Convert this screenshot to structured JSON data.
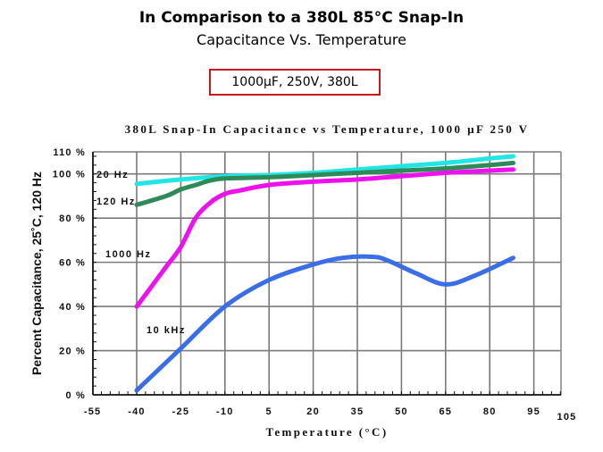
{
  "header": {
    "title": "In Comparison to a 380L 85°C Snap-In",
    "subtitle": "Capacitance Vs. Temperature",
    "spec_box": "1000µF, 250V, 380L",
    "spec_box_border_color": "#c8191c"
  },
  "chart_data": {
    "type": "line",
    "title": "380L Snap-In Capacitance vs Temperature, 1000 µF 250 V",
    "xlabel": "Temperature (°C)",
    "ylabel": "Percent Capacitance, 25˚C, 120 Hz",
    "xlim": [
      -55,
      105
    ],
    "ylim": [
      0,
      110
    ],
    "grid": true,
    "x_ticks": [
      -55,
      -40,
      -25,
      -10,
      5,
      20,
      35,
      50,
      65,
      80,
      95,
      105
    ],
    "x_tick_labels": [
      "-55",
      "-40",
      "-25",
      "-10",
      "5",
      "20",
      "35",
      "50",
      "65",
      "80",
      "95",
      "105"
    ],
    "y_ticks": [
      0,
      20,
      40,
      60,
      80,
      100,
      110
    ],
    "y_tick_labels": [
      "0 %",
      "20 %",
      "40 %",
      "60 %",
      "80 %",
      "100 %",
      "110 %"
    ],
    "series": [
      {
        "name": "20 Hz",
        "color": "#22e6e6",
        "x": [
          -40,
          -25,
          -10,
          5,
          20,
          35,
          50,
          65,
          80,
          88
        ],
        "values": [
          95.5,
          97.5,
          99,
          99.5,
          100.5,
          102,
          103.5,
          105,
          107,
          108
        ]
      },
      {
        "name": "120 Hz",
        "color": "#2e8b57",
        "x": [
          -40,
          -30,
          -25,
          -20,
          -15,
          -10,
          5,
          20,
          35,
          50,
          65,
          80,
          88
        ],
        "values": [
          86,
          90,
          93,
          95,
          97,
          98,
          98.5,
          99.5,
          100.5,
          101.5,
          102.5,
          104,
          105
        ]
      },
      {
        "name": "1000 Hz",
        "color": "#ee10ee",
        "x": [
          -40,
          -35,
          -30,
          -25,
          -20,
          -15,
          -10,
          -5,
          5,
          20,
          35,
          50,
          65,
          80,
          88
        ],
        "values": [
          40,
          49,
          58,
          67,
          80,
          87,
          91,
          92.5,
          95,
          96.5,
          97.5,
          99,
          100.5,
          101.5,
          102
        ]
      },
      {
        "name": "10 kHz",
        "color": "#3a6ee8",
        "x": [
          -40,
          -25,
          -10,
          5,
          20,
          30,
          40,
          45,
          55,
          65,
          75,
          88
        ],
        "values": [
          2,
          21,
          40,
          52,
          59,
          62,
          62.5,
          61,
          55,
          50,
          54,
          62
        ]
      }
    ],
    "annotations": [
      "20 Hz",
      "120 Hz",
      "1000 Hz",
      "10 kHz"
    ]
  }
}
